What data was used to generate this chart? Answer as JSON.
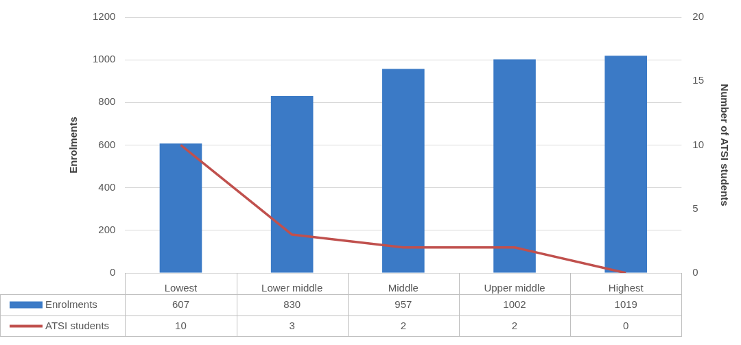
{
  "chart_data": {
    "type": "bar",
    "categories": [
      "Lowest",
      "Lower middle",
      "Middle",
      "Upper middle",
      "Highest"
    ],
    "series": [
      {
        "name": "Enrolments",
        "color": "#3b7ac6",
        "values": [
          607,
          830,
          957,
          1002,
          1019
        ]
      },
      {
        "name": "ATSI students",
        "type": "line",
        "axis": "y2",
        "color": "#c0504d",
        "values": [
          10,
          3,
          2,
          2,
          0
        ]
      }
    ],
    "ylabel": "Enrolments",
    "y2label": "Number of ATSI students",
    "ylim": [
      0,
      1200
    ],
    "yticks": [
      0,
      200,
      400,
      600,
      800,
      1000,
      1200
    ],
    "y2lim": [
      0,
      20
    ],
    "y2ticks": [
      0,
      5,
      10,
      15,
      20
    ],
    "grid": "y",
    "legend": "bottom",
    "data_labels": true,
    "marker": "none",
    "line_style": "solid"
  }
}
